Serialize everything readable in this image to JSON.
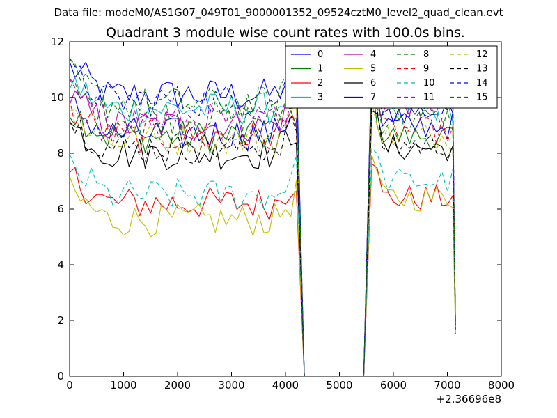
{
  "figure": {
    "supertitle": "Data file: modeM0/AS1G07_049T01_9000001352_09524cztM0_level2_quad_clean.evt",
    "title": "Quadrant 3 module wise count rates with 100.0s bins.",
    "offset_label": "+2.36696e8"
  },
  "chart_data": {
    "type": "line",
    "title": "Quadrant 3 module wise count rates with 100.0s bins.",
    "xlabel": "",
    "ylabel": "",
    "xlim": [
      0,
      8000
    ],
    "ylim": [
      0,
      12
    ],
    "x_ticks": [
      0,
      1000,
      2000,
      3000,
      4000,
      5000,
      6000,
      7000,
      8000
    ],
    "y_ticks": [
      0,
      2,
      4,
      6,
      8,
      10,
      12
    ],
    "x_offset": "+2.36696e8",
    "grid": false,
    "legend_position": "top-right",
    "legend_columns": 4,
    "series": [
      {
        "name": "0",
        "color": "#0000ff",
        "dash": "solid",
        "level1": 10.1,
        "level2": 9.5
      },
      {
        "name": "1",
        "color": "#008000",
        "dash": "solid",
        "level1": 8.6,
        "level2": 8.6
      },
      {
        "name": "2",
        "color": "#ff0000",
        "dash": "solid",
        "level1": 6.2,
        "level2": 6.4
      },
      {
        "name": "3",
        "color": "#00bfbf",
        "dash": "solid",
        "level1": 9.6,
        "level2": 9.6
      },
      {
        "name": "4",
        "color": "#bf00bf",
        "dash": "solid",
        "level1": 9.0,
        "level2": 9.8
      },
      {
        "name": "5",
        "color": "#bfbf00",
        "dash": "solid",
        "level1": 5.6,
        "level2": 6.4
      },
      {
        "name": "6",
        "color": "#000000",
        "dash": "solid",
        "level1": 8.0,
        "level2": 8.2
      },
      {
        "name": "7",
        "color": "#0000ff",
        "dash": "solid",
        "level1": 8.7,
        "level2": 9.0
      },
      {
        "name": "8",
        "color": "#008000",
        "dash": "dashed",
        "level1": 9.3,
        "level2": 9.2
      },
      {
        "name": "9",
        "color": "#ff0000",
        "dash": "dashed",
        "level1": 8.6,
        "level2": 8.8
      },
      {
        "name": "10",
        "color": "#00bfbf",
        "dash": "dashed",
        "level1": 6.5,
        "level2": 7.0
      },
      {
        "name": "11",
        "color": "#bf00bf",
        "dash": "dashed",
        "level1": 9.2,
        "level2": 10.2
      },
      {
        "name": "12",
        "color": "#bfbf00",
        "dash": "dashed",
        "level1": 8.5,
        "level2": 8.6
      },
      {
        "name": "13",
        "color": "#000000",
        "dash": "dashed",
        "level1": 8.2,
        "level2": 8.3
      },
      {
        "name": "14",
        "color": "#0000ff",
        "dash": "dashed",
        "level1": 9.9,
        "level2": 9.8
      },
      {
        "name": "15",
        "color": "#008000",
        "dash": "dashed",
        "level1": 9.8,
        "level2": 9.6
      }
    ],
    "segment1_x": [
      0,
      4200
    ],
    "zero_gap_x": [
      4350,
      5450
    ],
    "segment2_x": [
      5600,
      7100
    ],
    "end_value_x": 7150
  }
}
